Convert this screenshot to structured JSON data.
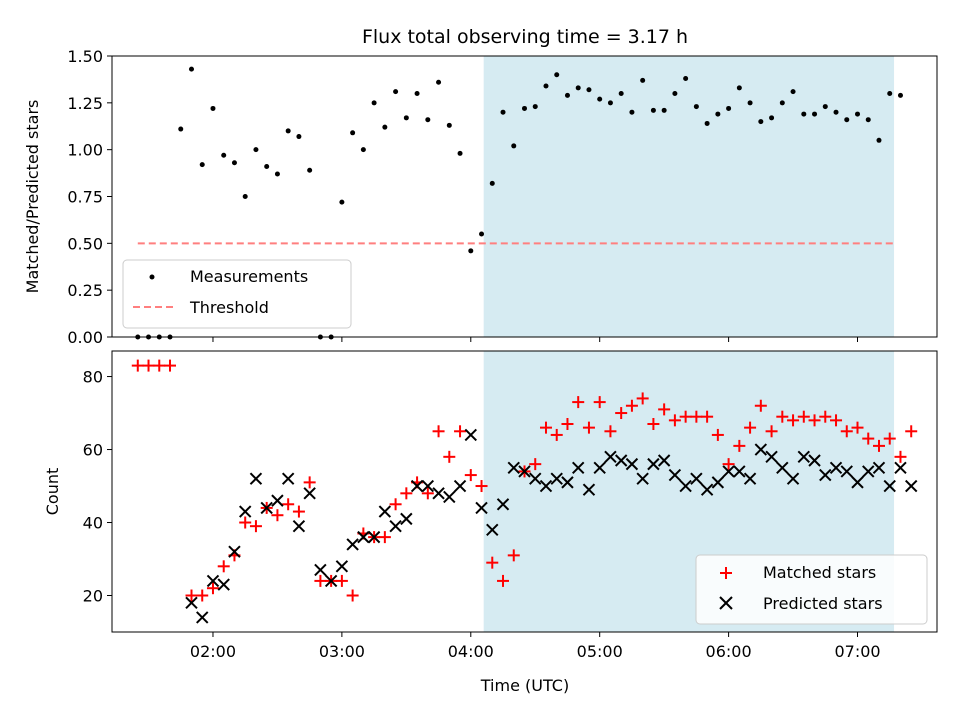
{
  "title": "Flux total observing time = 3.17 h",
  "xlabel": "Time (UTC)",
  "x_ticks": [
    "02:00",
    "03:00",
    "04:00",
    "05:00",
    "06:00",
    "07:00"
  ],
  "colors": {
    "measurement": "#000000",
    "threshold": "#ff7f7f",
    "matched": "#ff0000",
    "predicted": "#000000",
    "shade": "#add8e6"
  },
  "chart_data": [
    {
      "type": "scatter",
      "ylabel": "Matched/Predicted stars",
      "ylim": [
        0,
        1.5
      ],
      "y_ticks": [
        "0.00",
        "0.25",
        "0.50",
        "0.75",
        "1.00",
        "1.25",
        "1.50"
      ],
      "x_range": [
        "01:13",
        "07:37"
      ],
      "shaded_span": [
        "04:06",
        "07:17"
      ],
      "threshold": {
        "name": "Threshold",
        "value": 0.5,
        "x_start": "01:25",
        "x_end": "07:17",
        "style": "dashed"
      },
      "legend": {
        "position": "lower-left",
        "entries": [
          "Measurements",
          "Threshold"
        ]
      },
      "series": [
        {
          "name": "Measurements",
          "x": [
            "01:25",
            "01:30",
            "01:35",
            "01:40",
            "01:45",
            "01:50",
            "01:55",
            "02:00",
            "02:05",
            "02:10",
            "02:15",
            "02:20",
            "02:25",
            "02:30",
            "02:35",
            "02:40",
            "02:45",
            "02:50",
            "02:55",
            "03:00",
            "03:05",
            "03:10",
            "03:15",
            "03:20",
            "03:25",
            "03:30",
            "03:35",
            "03:40",
            "03:45",
            "03:50",
            "03:55",
            "04:00",
            "04:05",
            "04:10",
            "04:15",
            "04:20",
            "04:25",
            "04:30",
            "04:35",
            "04:40",
            "04:45",
            "04:50",
            "04:55",
            "05:00",
            "05:05",
            "05:10",
            "05:15",
            "05:20",
            "05:25",
            "05:30",
            "05:35",
            "05:40",
            "05:45",
            "05:50",
            "05:55",
            "06:00",
            "06:05",
            "06:10",
            "06:15",
            "06:20",
            "06:25",
            "06:30",
            "06:35",
            "06:40",
            "06:45",
            "06:50",
            "06:55",
            "07:00",
            "07:05",
            "07:10",
            "07:15",
            "07:20"
          ],
          "y": [
            0.0,
            0.0,
            0.0,
            0.0,
            1.11,
            1.43,
            0.92,
            1.22,
            0.97,
            0.93,
            0.75,
            1.0,
            0.91,
            0.87,
            1.1,
            1.07,
            0.89,
            0.0,
            0.0,
            0.72,
            1.09,
            1.0,
            1.25,
            1.12,
            1.31,
            1.17,
            1.3,
            1.16,
            1.36,
            1.13,
            0.98,
            0.46,
            0.55,
            0.82,
            1.2,
            1.02,
            1.22,
            1.23,
            1.34,
            1.4,
            1.29,
            1.33,
            1.32,
            1.27,
            1.25,
            1.3,
            1.2,
            1.37,
            1.21,
            1.21,
            1.3,
            1.38,
            1.23,
            1.14,
            1.19,
            1.22,
            1.33,
            1.25,
            1.15,
            1.17,
            1.25,
            1.31,
            1.19,
            1.19,
            1.23,
            1.2,
            1.16,
            1.19,
            1.16,
            1.05,
            1.3,
            1.29
          ]
        }
      ]
    },
    {
      "type": "scatter",
      "ylabel": "Count",
      "ylim": [
        10,
        87
      ],
      "y_ticks": [
        "20",
        "40",
        "60",
        "80"
      ],
      "x_range": [
        "01:13",
        "07:37"
      ],
      "shaded_span": [
        "04:06",
        "07:17"
      ],
      "legend": {
        "position": "lower-right",
        "entries": [
          "Matched stars",
          "Predicted stars"
        ]
      },
      "series": [
        {
          "name": "Matched stars",
          "marker": "plus",
          "x": [
            "01:25",
            "01:30",
            "01:35",
            "01:40",
            "01:50",
            "01:55",
            "02:00",
            "02:05",
            "02:10",
            "02:15",
            "02:20",
            "02:25",
            "02:30",
            "02:35",
            "02:40",
            "02:45",
            "02:50",
            "02:55",
            "03:00",
            "03:05",
            "03:10",
            "03:15",
            "03:20",
            "03:25",
            "03:30",
            "03:35",
            "03:40",
            "03:45",
            "03:50",
            "03:55",
            "04:00",
            "04:05",
            "04:10",
            "04:15",
            "04:20",
            "04:25",
            "04:30",
            "04:35",
            "04:40",
            "04:45",
            "04:50",
            "04:55",
            "05:00",
            "05:05",
            "05:10",
            "05:15",
            "05:20",
            "05:25",
            "05:30",
            "05:35",
            "05:40",
            "05:45",
            "05:50",
            "05:55",
            "06:00",
            "06:05",
            "06:10",
            "06:15",
            "06:20",
            "06:25",
            "06:30",
            "06:35",
            "06:40",
            "06:45",
            "06:50",
            "06:55",
            "07:00",
            "07:05",
            "07:10",
            "07:15",
            "07:20",
            "07:25"
          ],
          "y": [
            83,
            83,
            83,
            83,
            20,
            20,
            22,
            28,
            31,
            40,
            39,
            44,
            42,
            45,
            43,
            51,
            24,
            24,
            24,
            20,
            37,
            36,
            36,
            45,
            48,
            51,
            48,
            65,
            58,
            65,
            53,
            50,
            29,
            24,
            31,
            54,
            56,
            66,
            64,
            67,
            73,
            66,
            73,
            65,
            70,
            72,
            74,
            67,
            71,
            68,
            69,
            69,
            69,
            64,
            56,
            61,
            66,
            72,
            65,
            69,
            68,
            69,
            68,
            69,
            68,
            65,
            66,
            63,
            61,
            63,
            58,
            65
          ]
        },
        {
          "name": "Predicted stars",
          "marker": "x",
          "x": [
            "01:50",
            "01:55",
            "02:00",
            "02:05",
            "02:10",
            "02:15",
            "02:20",
            "02:25",
            "02:30",
            "02:35",
            "02:40",
            "02:45",
            "02:50",
            "02:55",
            "03:00",
            "03:05",
            "03:10",
            "03:15",
            "03:20",
            "03:25",
            "03:30",
            "03:35",
            "03:40",
            "03:45",
            "03:50",
            "03:55",
            "04:00",
            "04:05",
            "04:10",
            "04:15",
            "04:20",
            "04:25",
            "04:30",
            "04:35",
            "04:40",
            "04:45",
            "04:50",
            "04:55",
            "05:00",
            "05:05",
            "05:10",
            "05:15",
            "05:20",
            "05:25",
            "05:30",
            "05:35",
            "05:40",
            "05:45",
            "05:50",
            "05:55",
            "06:00",
            "06:05",
            "06:10",
            "06:15",
            "06:20",
            "06:25",
            "06:30",
            "06:35",
            "06:40",
            "06:45",
            "06:50",
            "06:55",
            "07:00",
            "07:05",
            "07:10",
            "07:15",
            "07:20",
            "07:25"
          ],
          "y": [
            18,
            14,
            24,
            23,
            32,
            43,
            52,
            44,
            46,
            52,
            39,
            48,
            27,
            24,
            28,
            34,
            36,
            36,
            43,
            39,
            41,
            50,
            50,
            48,
            47,
            50,
            64,
            44,
            38,
            45,
            55,
            54,
            52,
            50,
            52,
            51,
            55,
            49,
            55,
            58,
            57,
            56,
            52,
            56,
            57,
            53,
            50,
            52,
            49,
            51,
            54,
            54,
            52,
            60,
            58,
            55,
            52,
            58,
            57,
            53,
            55,
            54,
            51,
            54,
            55,
            50,
            55,
            50
          ]
        }
      ]
    }
  ]
}
